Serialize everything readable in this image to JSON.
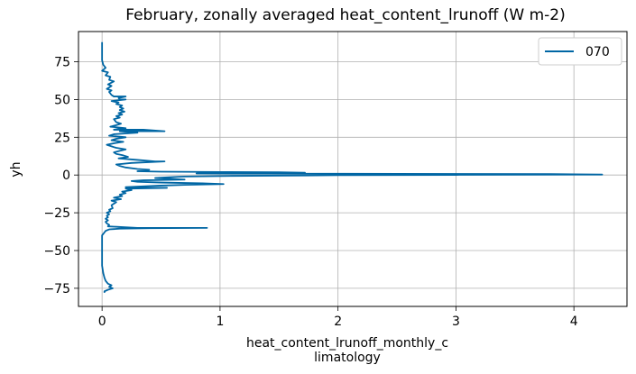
{
  "chart_data": {
    "type": "line",
    "title": "February, zonally averaged heat_content_lrunoff (W m-2)",
    "xlabel_lines": [
      "heat_content_lrunoff_monthly_c",
      "limatology"
    ],
    "ylabel": "yh",
    "xlim": [
      -0.2,
      4.45
    ],
    "ylim": [
      -87,
      95
    ],
    "xticks": [
      0,
      1,
      2,
      3,
      4
    ],
    "xtick_labels": [
      "0",
      "1",
      "2",
      "3",
      "4"
    ],
    "yticks": [
      -75,
      -50,
      -25,
      0,
      25,
      50,
      75
    ],
    "ytick_labels": [
      "−75",
      "−50",
      "−25",
      "0",
      "25",
      "50",
      "75"
    ],
    "grid": true,
    "legend_position": "top-right",
    "line_color": "#0066a4",
    "series": [
      {
        "name": "070",
        "points": [
          [
            0.0,
            88
          ],
          [
            0.0,
            85
          ],
          [
            0.0,
            80
          ],
          [
            0.0,
            76
          ],
          [
            0.01,
            73
          ],
          [
            0.03,
            71
          ],
          [
            0.0,
            69
          ],
          [
            0.05,
            68
          ],
          [
            0.03,
            66
          ],
          [
            0.07,
            65
          ],
          [
            0.06,
            63
          ],
          [
            0.1,
            62
          ],
          [
            0.05,
            60
          ],
          [
            0.08,
            59
          ],
          [
            0.04,
            57
          ],
          [
            0.08,
            56
          ],
          [
            0.06,
            55
          ],
          [
            0.08,
            53
          ],
          [
            0.1,
            52
          ],
          [
            0.2,
            52
          ],
          [
            0.14,
            51
          ],
          [
            0.15,
            50
          ],
          [
            0.2,
            50
          ],
          [
            0.08,
            49
          ],
          [
            0.14,
            48
          ],
          [
            0.12,
            47
          ],
          [
            0.17,
            46
          ],
          [
            0.15,
            45
          ],
          [
            0.18,
            44
          ],
          [
            0.15,
            43
          ],
          [
            0.19,
            42
          ],
          [
            0.14,
            41
          ],
          [
            0.17,
            40
          ],
          [
            0.12,
            39
          ],
          [
            0.15,
            38
          ],
          [
            0.1,
            37
          ],
          [
            0.12,
            35
          ],
          [
            0.16,
            34
          ],
          [
            0.12,
            33
          ],
          [
            0.07,
            32
          ],
          [
            0.2,
            31
          ],
          [
            0.1,
            30
          ],
          [
            0.35,
            30
          ],
          [
            0.53,
            29
          ],
          [
            0.15,
            29
          ],
          [
            0.3,
            28
          ],
          [
            0.1,
            27
          ],
          [
            0.06,
            26
          ],
          [
            0.2,
            25
          ],
          [
            0.12,
            24
          ],
          [
            0.08,
            23
          ],
          [
            0.18,
            22
          ],
          [
            0.1,
            21
          ],
          [
            0.04,
            20
          ],
          [
            0.08,
            19
          ],
          [
            0.12,
            18
          ],
          [
            0.2,
            17
          ],
          [
            0.15,
            16
          ],
          [
            0.1,
            15
          ],
          [
            0.12,
            14
          ],
          [
            0.18,
            13
          ],
          [
            0.22,
            12
          ],
          [
            0.14,
            11
          ],
          [
            0.3,
            10
          ],
          [
            0.45,
            9
          ],
          [
            0.53,
            9
          ],
          [
            0.25,
            8
          ],
          [
            0.12,
            7
          ],
          [
            0.15,
            6
          ],
          [
            0.2,
            5
          ],
          [
            0.3,
            4
          ],
          [
            0.4,
            3.5
          ],
          [
            0.35,
            3
          ],
          [
            0.3,
            2.5
          ],
          [
            0.5,
            2.2
          ],
          [
            1.0,
            2.0
          ],
          [
            1.5,
            1.8
          ],
          [
            1.72,
            1.5
          ],
          [
            1.2,
            1.2
          ],
          [
            0.8,
            1.0
          ],
          [
            2.5,
            0.8
          ],
          [
            3.8,
            0.6
          ],
          [
            4.24,
            0.3
          ],
          [
            3.0,
            0.1
          ],
          [
            2.0,
            -0.1
          ],
          [
            1.72,
            -0.3
          ],
          [
            1.1,
            -0.6
          ],
          [
            0.7,
            -1
          ],
          [
            0.55,
            -1.5
          ],
          [
            0.45,
            -2
          ],
          [
            0.7,
            -3
          ],
          [
            0.35,
            -3.5
          ],
          [
            0.25,
            -4
          ],
          [
            0.3,
            -4.5
          ],
          [
            0.5,
            -5
          ],
          [
            0.85,
            -5.5
          ],
          [
            1.03,
            -6
          ],
          [
            0.7,
            -6.5
          ],
          [
            0.5,
            -7
          ],
          [
            0.35,
            -7.5
          ],
          [
            0.2,
            -8
          ],
          [
            0.55,
            -8.5
          ],
          [
            0.2,
            -9
          ],
          [
            0.25,
            -10
          ],
          [
            0.17,
            -11
          ],
          [
            0.2,
            -12
          ],
          [
            0.15,
            -13
          ],
          [
            0.17,
            -14
          ],
          [
            0.1,
            -15
          ],
          [
            0.16,
            -16
          ],
          [
            0.08,
            -17
          ],
          [
            0.12,
            -18
          ],
          [
            0.1,
            -19
          ],
          [
            0.08,
            -20
          ],
          [
            0.09,
            -22
          ],
          [
            0.06,
            -23
          ],
          [
            0.07,
            -24
          ],
          [
            0.04,
            -25
          ],
          [
            0.06,
            -26
          ],
          [
            0.04,
            -27
          ],
          [
            0.05,
            -28
          ],
          [
            0.03,
            -29
          ],
          [
            0.05,
            -30
          ],
          [
            0.03,
            -31
          ],
          [
            0.04,
            -32
          ],
          [
            0.06,
            -33
          ],
          [
            0.05,
            -34
          ],
          [
            0.3,
            -35
          ],
          [
            0.89,
            -35
          ],
          [
            0.4,
            -35.2
          ],
          [
            0.15,
            -35.5
          ],
          [
            0.06,
            -36
          ],
          [
            0.03,
            -37
          ],
          [
            0.02,
            -38
          ],
          [
            0.01,
            -39
          ],
          [
            0.0,
            -40
          ],
          [
            0.0,
            -45
          ],
          [
            0.0,
            -50
          ],
          [
            0.0,
            -55
          ],
          [
            0.0,
            -60
          ],
          [
            0.01,
            -65
          ],
          [
            0.02,
            -68
          ],
          [
            0.03,
            -70
          ],
          [
            0.05,
            -72
          ],
          [
            0.08,
            -73
          ],
          [
            0.06,
            -74
          ],
          [
            0.09,
            -75
          ],
          [
            0.05,
            -76
          ],
          [
            0.02,
            -77
          ],
          [
            0.02,
            -78
          ]
        ]
      }
    ]
  }
}
